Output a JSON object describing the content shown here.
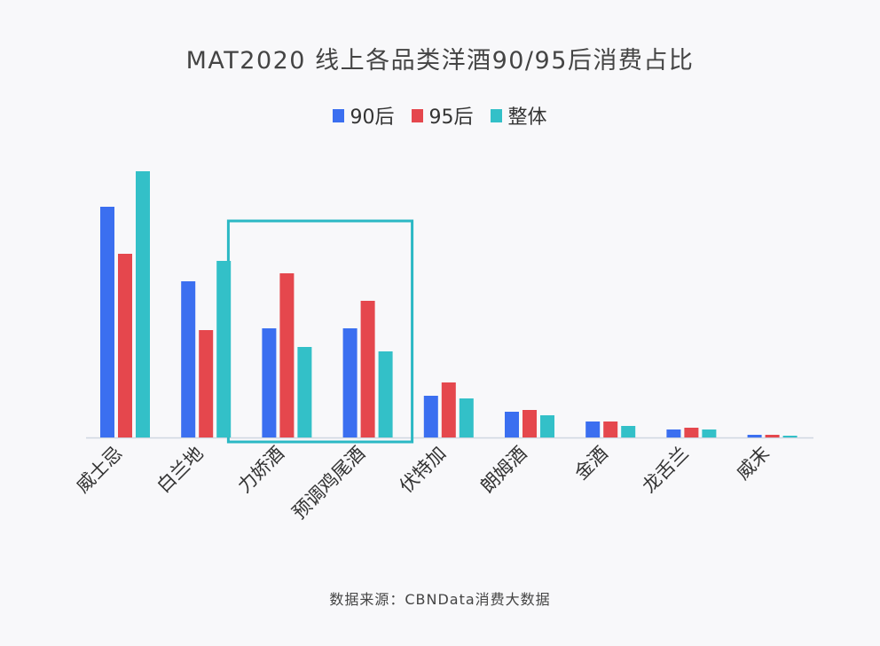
{
  "chart_data": {
    "type": "bar",
    "title": "MAT2020 线上各品类洋酒90/95后消费占比",
    "categories": [
      "威士忌",
      "白兰地",
      "力娇酒",
      "预调鸡尾酒",
      "伏特加",
      "朗姆酒",
      "金酒",
      "龙舌兰",
      "威末"
    ],
    "series": [
      {
        "name": "90后",
        "color": "#3b6ff0",
        "values": [
          26.0,
          17.6,
          12.3,
          12.3,
          4.7,
          2.9,
          1.8,
          0.9,
          0.3
        ]
      },
      {
        "name": "95后",
        "color": "#e5474d",
        "values": [
          20.7,
          12.1,
          18.5,
          15.4,
          6.2,
          3.1,
          1.8,
          1.1,
          0.3
        ]
      },
      {
        "name": "整体",
        "color": "#33c0c8",
        "values": [
          30.0,
          19.9,
          10.2,
          9.7,
          4.4,
          2.5,
          1.3,
          0.9,
          0.2
        ]
      }
    ],
    "y_axis_visible": false,
    "grid": false,
    "legend": "top",
    "highlight": {
      "categories": [
        "力娇酒",
        "预调鸡尾酒"
      ],
      "color": "#2bb8c4"
    },
    "source": "数据来源：CBNData消费大数据"
  }
}
